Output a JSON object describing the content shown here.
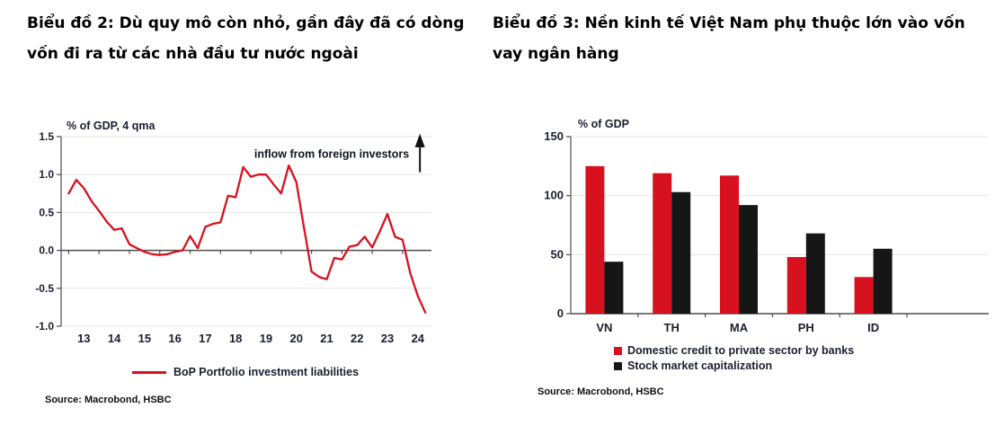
{
  "colors": {
    "background": "#ffffff",
    "grid": "#e6e6e6",
    "axis": "#4d4d4d",
    "tick_text": "#1b1f2e",
    "hsbc_red": "#d7111e",
    "bar_black": "#161616"
  },
  "left_panel": {
    "title_line1": "Biểu đồ 2: Dù quy mô còn nhỏ, gần đây đã có dòng",
    "title_line2": "vốn đi ra từ các nhà đầu tư nước ngoài",
    "source": "Source: Macrobond, HSBC"
  },
  "right_panel": {
    "title_line1": "Biểu đồ 3: Nền kinh tế Việt Nam phụ thuộc lớn vào vốn",
    "title_line2": "vay ngân hàng",
    "source": "Source: Macrobond, HSBC"
  },
  "chart_data": [
    {
      "type": "line",
      "axis_label": "% of GDP, 4 qma",
      "annotation": "inflow from foreign investors",
      "xlim": [
        2012.75,
        2024.95
      ],
      "ylim": [
        -1.0,
        1.5
      ],
      "x_start": 2013.0,
      "x_step": 0.25,
      "x_tick_labels": [
        "13",
        "14",
        "15",
        "16",
        "17",
        "18",
        "19",
        "20",
        "21",
        "22",
        "23",
        "24"
      ],
      "x_tick_positions": [
        2013.5,
        2014.5,
        2015.5,
        2016.5,
        2017.5,
        2018.5,
        2019.5,
        2020.5,
        2021.5,
        2022.5,
        2023.5,
        2024.5
      ],
      "y_ticks": [
        1.5,
        1.0,
        0.5,
        0.0,
        -0.5,
        -1.0
      ],
      "y_tick_labels": [
        "1.5",
        "1.0",
        "0.5",
        "0.0",
        "-0.5",
        "-1.0"
      ],
      "grid": true,
      "legend_position": "bottom",
      "series": [
        {
          "name": "BoP Portfolio investment liabilities",
          "color": "#d7111e",
          "values": [
            0.75,
            0.93,
            0.82,
            0.65,
            0.52,
            0.38,
            0.27,
            0.29,
            0.08,
            0.03,
            -0.02,
            -0.05,
            -0.06,
            -0.05,
            -0.02,
            0.0,
            0.19,
            0.03,
            0.31,
            0.35,
            0.37,
            0.72,
            0.7,
            1.1,
            0.97,
            1.0,
            1.0,
            0.87,
            0.75,
            1.12,
            0.9,
            0.3,
            -0.28,
            -0.35,
            -0.38,
            -0.1,
            -0.12,
            0.05,
            0.07,
            0.18,
            0.04,
            0.25,
            0.48,
            0.18,
            0.14,
            -0.3,
            -0.6,
            -0.82
          ]
        }
      ]
    },
    {
      "type": "bar",
      "axis_label": "% of GDP",
      "categories": [
        "VN",
        "TH",
        "MA",
        "PH",
        "ID"
      ],
      "ylim": [
        0,
        150
      ],
      "y_ticks": [
        150,
        100,
        50,
        0
      ],
      "y_tick_labels": [
        "150",
        "100",
        "50",
        "0"
      ],
      "grid": true,
      "legend_position": "bottom",
      "series": [
        {
          "name": "Domestic credit to private sector by banks",
          "color": "#d7111e",
          "values": [
            125,
            119,
            117,
            48,
            31
          ]
        },
        {
          "name": "Stock market capitalization",
          "color": "#161616",
          "values": [
            44,
            103,
            92,
            68,
            55
          ]
        }
      ]
    }
  ]
}
